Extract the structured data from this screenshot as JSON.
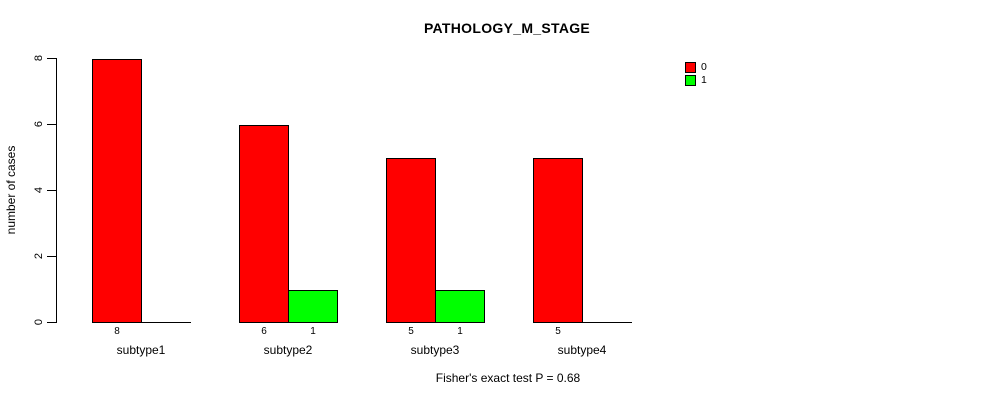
{
  "chart_data": {
    "type": "bar",
    "title": "PATHOLOGY_M_STAGE",
    "xlabel": "",
    "ylabel": "number of cases",
    "categories": [
      "subtype1",
      "subtype2",
      "subtype3",
      "subtype4"
    ],
    "series": [
      {
        "name": "0",
        "color": "#ff0000",
        "values": [
          8,
          6,
          5,
          5
        ]
      },
      {
        "name": "1",
        "color": "#00ff00",
        "values": [
          0,
          1,
          1,
          0
        ]
      }
    ],
    "bar_value_labels": [
      [
        "8",
        "",
        "6",
        "1",
        "5",
        "1",
        "5",
        ""
      ]
    ],
    "ylim": [
      0,
      8
    ],
    "yticks": [
      0,
      2,
      4,
      6,
      8
    ],
    "grid": "off",
    "legend_position": "top-right",
    "annotation": "Fisher's exact test P = 0.68",
    "axis_color": "#000000",
    "background_color": "#ffffff"
  }
}
